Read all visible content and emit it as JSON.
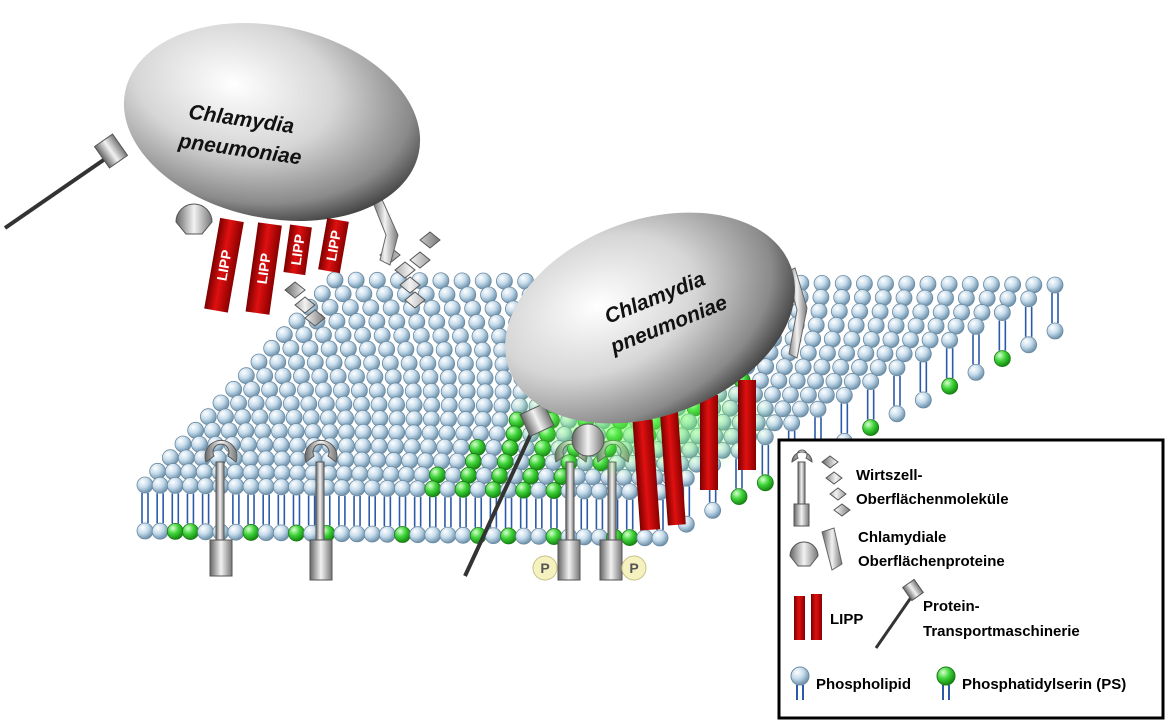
{
  "bacteria": [
    {
      "label_lines": [
        "Chlamydia",
        "pneumoniae"
      ]
    },
    {
      "label_lines": [
        "Chlamydia",
        "pneumoniae"
      ]
    }
  ],
  "lipp_labels": [
    "LIPP",
    "LIPP",
    "LIPP",
    "LIPP"
  ],
  "phospho_labels": [
    "P",
    "P"
  ],
  "legend": {
    "host_molecules": [
      "Wirtszell-",
      "Oberflächenmoleküle"
    ],
    "chlamydial_proteins": [
      "Chlamydiale",
      "Oberflächenproteine"
    ],
    "lipp": "LIPP",
    "transport": [
      "Protein-",
      "Transportmaschinerie"
    ],
    "phospholipid": "Phospholipid",
    "phosphatidylserine": "Phosphatidylserin (PS)"
  }
}
